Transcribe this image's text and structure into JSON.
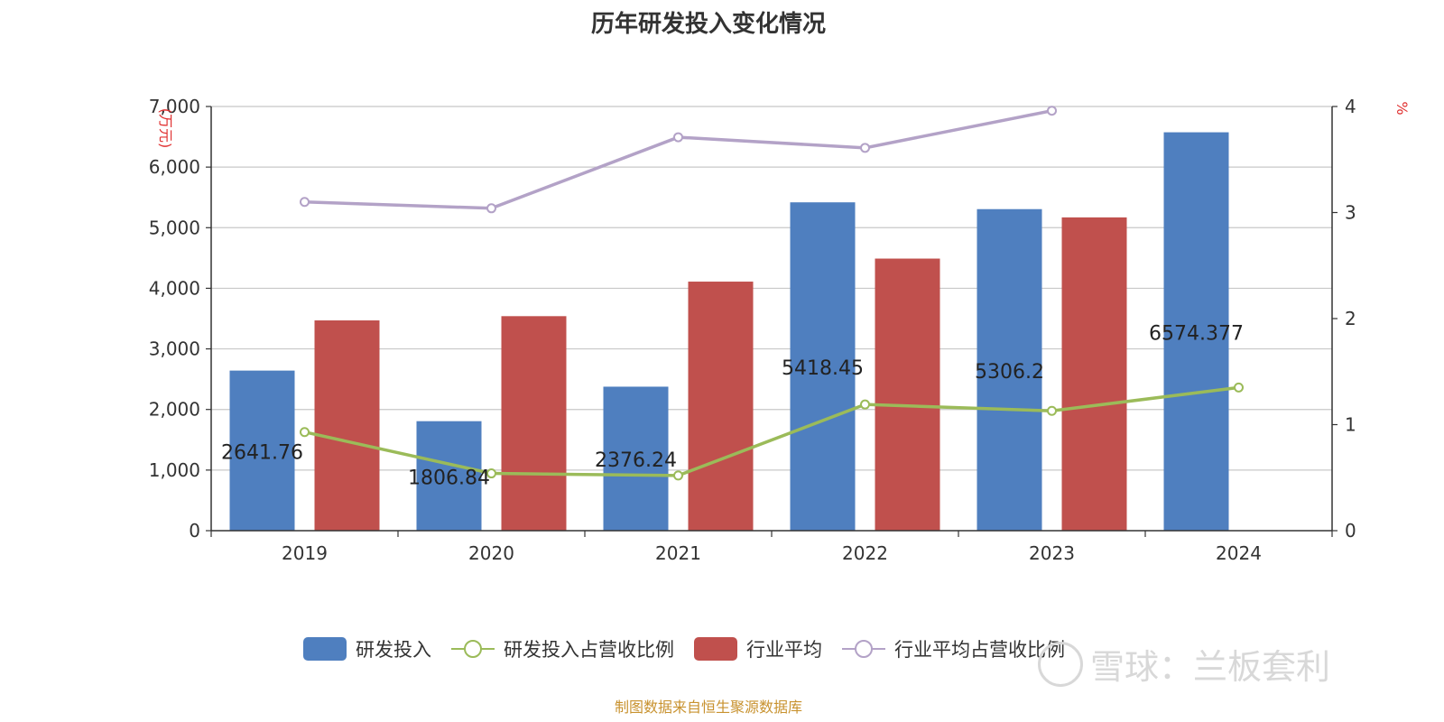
{
  "chart_data": {
    "type": "bar",
    "title": "历年研发投入变化情况",
    "categories": [
      "2019",
      "2020",
      "2021",
      "2022",
      "2023",
      "2024"
    ],
    "ylabel_left": "(万元)",
    "ylabel_right": "%",
    "ylim_left": [
      0,
      7000
    ],
    "yticks_left": [
      0,
      1000,
      2000,
      3000,
      4000,
      5000,
      6000,
      7000
    ],
    "ytick_labels_left": [
      "0",
      "1,000",
      "2,000",
      "3,000",
      "4,000",
      "5,000",
      "6,000",
      "7,000"
    ],
    "ylim_right": [
      0,
      4
    ],
    "yticks_right": [
      0,
      1,
      2,
      3,
      4
    ],
    "ytick_labels_right": [
      "0",
      "1",
      "2",
      "3",
      "4"
    ],
    "grid": true,
    "legend_position": "bottom",
    "series": [
      {
        "name": "研发投入",
        "type": "bar",
        "axis": "left",
        "color": "#4f7fbf",
        "values": [
          2641.76,
          1806.84,
          2376.24,
          5418.45,
          5306.2,
          6574.377
        ],
        "labels": [
          "2641.76",
          "1806.84",
          "2376.24",
          "5418.45",
          "5306.2",
          "6574.377"
        ]
      },
      {
        "name": "研发投入占营收比例",
        "type": "line",
        "axis": "right",
        "color": "#9bbb59",
        "values": [
          0.93,
          0.54,
          0.52,
          1.19,
          1.13,
          1.35
        ]
      },
      {
        "name": "行业平均",
        "type": "bar",
        "axis": "left",
        "color": "#c0504d",
        "values": [
          3470,
          3540,
          4110,
          4490,
          5170,
          null
        ]
      },
      {
        "name": "行业平均占营收比例",
        "type": "line",
        "axis": "right",
        "color": "#b3a2c7",
        "values": [
          3.1,
          3.04,
          3.71,
          3.61,
          3.96,
          null
        ]
      }
    ]
  },
  "watermark": "雪球：兰板套利",
  "source": "制图数据来自恒生聚源数据库"
}
